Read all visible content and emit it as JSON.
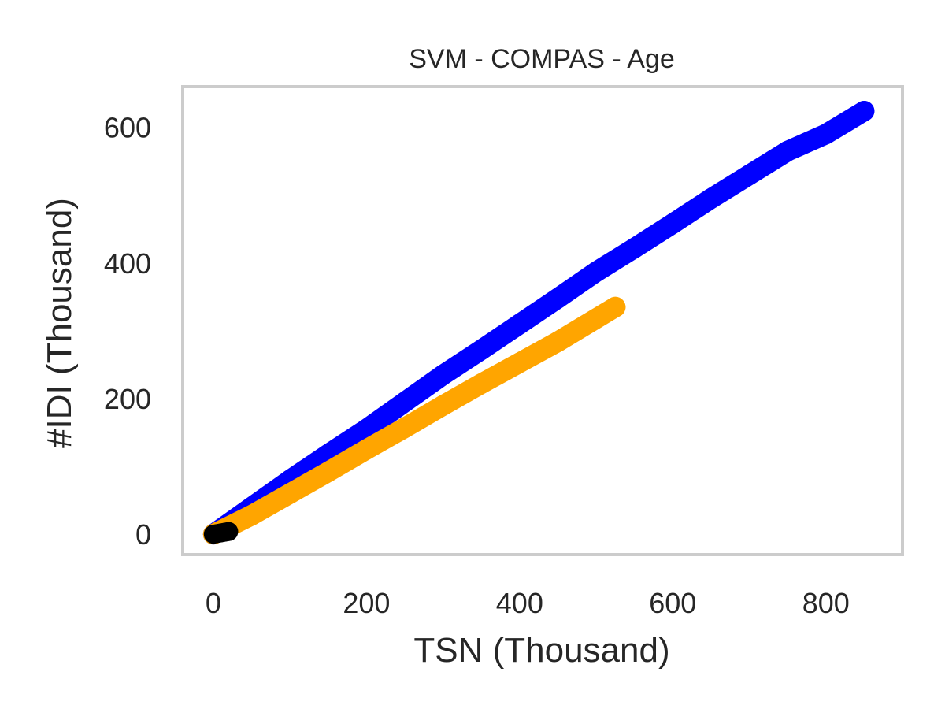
{
  "chart_data": {
    "type": "scatter",
    "title": "SVM - COMPAS - Age",
    "xlabel": "TSN (Thousand)",
    "ylabel": "#IDI (Thousand)",
    "xlim": [
      -40,
      900
    ],
    "ylim": [
      -30,
      660
    ],
    "xticks": [
      0,
      200,
      400,
      600,
      800
    ],
    "yticks": [
      0,
      200,
      400,
      600
    ],
    "grid": false,
    "legend": "none",
    "series": [
      {
        "color": "#0000ff",
        "x": [
          0,
          50,
          100,
          150,
          200,
          250,
          300,
          350,
          400,
          450,
          500,
          550,
          600,
          650,
          700,
          750,
          800,
          850
        ],
        "y": [
          0,
          40,
          80,
          118,
          155,
          195,
          235,
          272,
          310,
          348,
          387,
          422,
          458,
          495,
          530,
          565,
          590,
          624
        ]
      },
      {
        "color": "#ffa500",
        "x": [
          0,
          50,
          100,
          150,
          200,
          250,
          300,
          350,
          400,
          450,
          500,
          525
        ],
        "y": [
          0,
          28,
          60,
          92,
          125,
          157,
          190,
          222,
          253,
          284,
          318,
          335
        ]
      },
      {
        "color": "#000000",
        "x": [
          0,
          5,
          10,
          15,
          20
        ],
        "y": [
          0,
          1,
          2,
          3,
          4
        ]
      }
    ]
  }
}
